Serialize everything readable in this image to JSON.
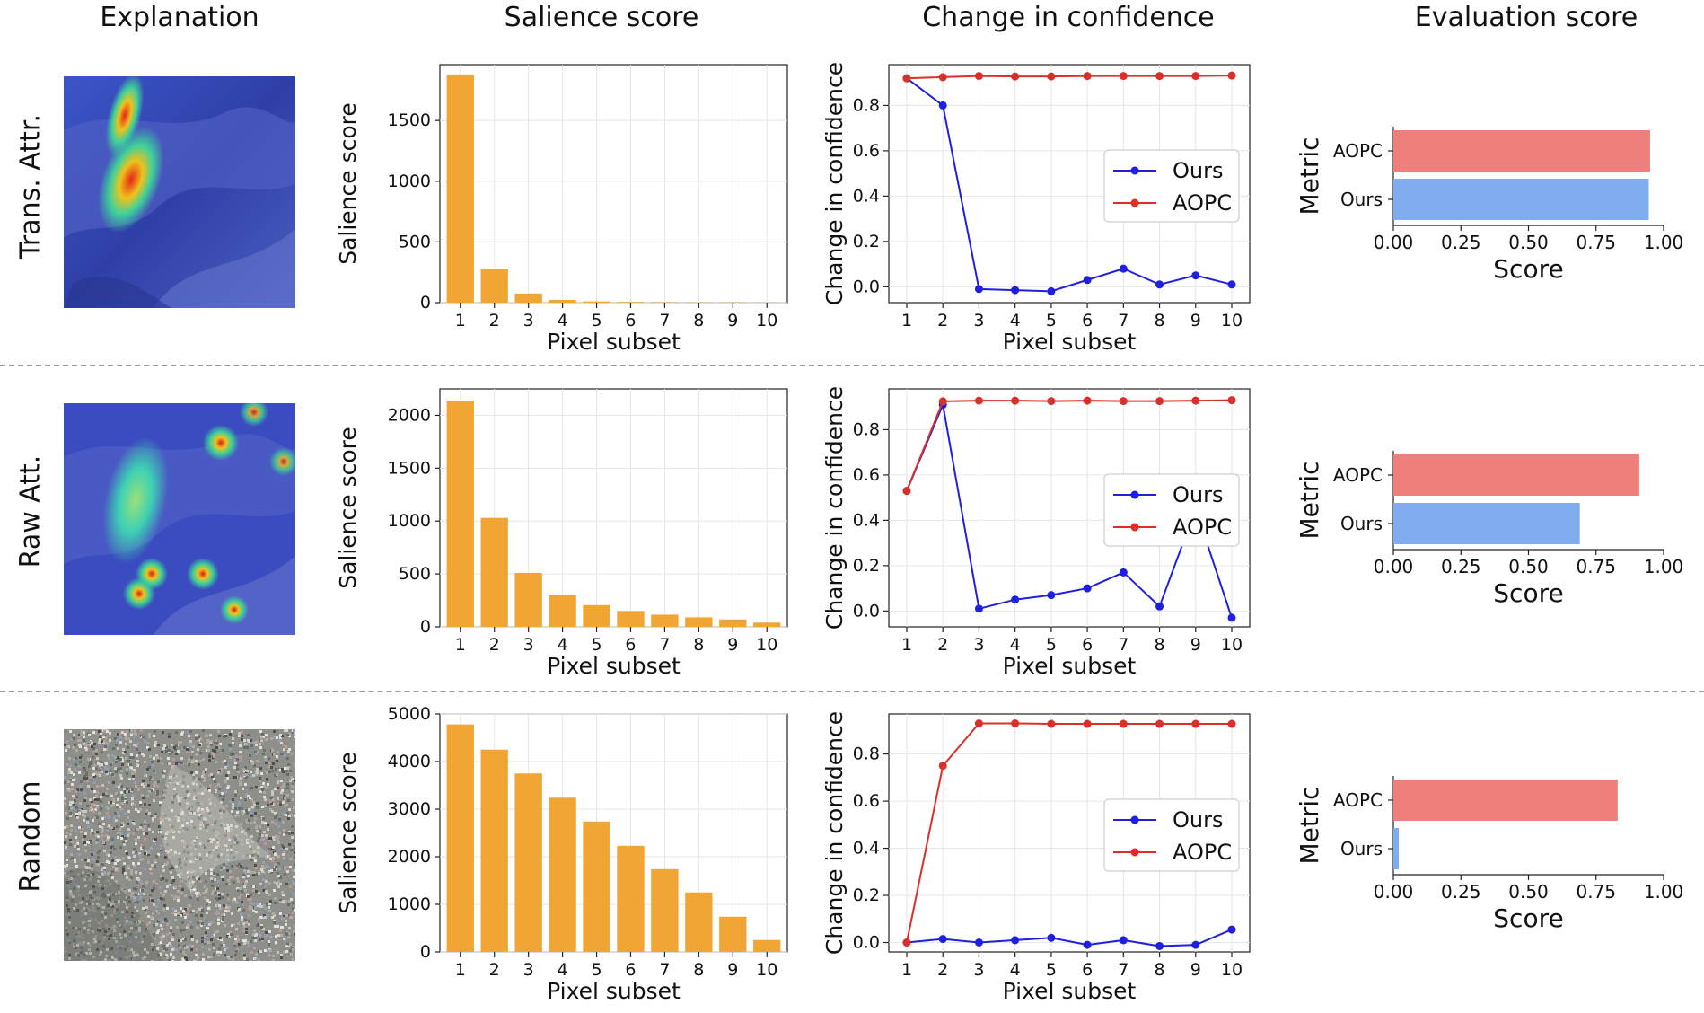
{
  "column_headers": [
    "Explanation",
    "Salience score",
    "Change in confidence",
    "Evaluation score"
  ],
  "rows": [
    {
      "label": "Trans. Attr.",
      "image": "heatmap-single-blob"
    },
    {
      "label": "Raw Att.",
      "image": "heatmap-scattered-spots"
    },
    {
      "label": "Random",
      "image": "noise"
    }
  ],
  "colors": {
    "bar": "#f0a535",
    "ours": "#1f1fe0",
    "aopc": "#d9302a",
    "eval_aopc": "#ee7f7c",
    "eval_ours": "#80adef"
  },
  "chart_data": [
    {
      "type": "bar",
      "row": "Trans. Attr.",
      "categories": [
        "1",
        "2",
        "3",
        "4",
        "5",
        "6",
        "7",
        "8",
        "9",
        "10"
      ],
      "values": [
        1880,
        280,
        75,
        22,
        10,
        5,
        3,
        2,
        2,
        1
      ],
      "xlabel": "Pixel subset",
      "ylabel": "Salience score",
      "ylim": [
        0,
        1960
      ],
      "yticks": [
        0,
        500,
        1000,
        1500
      ],
      "grid": true
    },
    {
      "type": "line",
      "row": "Trans. Attr.",
      "x": [
        1,
        2,
        3,
        4,
        5,
        6,
        7,
        8,
        9,
        10
      ],
      "series": [
        {
          "name": "Ours",
          "values": [
            0.92,
            0.8,
            -0.01,
            -0.015,
            -0.02,
            0.03,
            0.08,
            0.01,
            0.05,
            0.01
          ]
        },
        {
          "name": "AOPC",
          "values": [
            0.92,
            0.925,
            0.93,
            0.928,
            0.928,
            0.93,
            0.93,
            0.93,
            0.93,
            0.932
          ]
        }
      ],
      "xlabel": "Pixel subset",
      "ylabel": "Change in confidence",
      "ylim": [
        -0.07,
        0.98
      ],
      "yticks": [
        0.0,
        0.2,
        0.4,
        0.6,
        0.8
      ],
      "legend": "center-right",
      "grid": true
    },
    {
      "type": "bar",
      "orientation": "horizontal",
      "row": "Trans. Attr.",
      "categories": [
        "AOPC",
        "Ours"
      ],
      "values": [
        0.95,
        0.945
      ],
      "xlabel": "Score",
      "ylabel": "Metric",
      "xlim": [
        0,
        1
      ],
      "xticks": [
        "0.00",
        "0.25",
        "0.50",
        "0.75",
        "1.00"
      ]
    },
    {
      "type": "bar",
      "row": "Raw Att.",
      "categories": [
        "1",
        "2",
        "3",
        "4",
        "5",
        "6",
        "7",
        "8",
        "9",
        "10"
      ],
      "values": [
        2140,
        1030,
        510,
        305,
        205,
        150,
        115,
        90,
        70,
        40
      ],
      "xlabel": "Pixel subset",
      "ylabel": "Salience score",
      "ylim": [
        0,
        2250
      ],
      "yticks": [
        0,
        500,
        1000,
        1500,
        2000
      ],
      "grid": true
    },
    {
      "type": "line",
      "row": "Raw Att.",
      "x": [
        1,
        2,
        3,
        4,
        5,
        6,
        7,
        8,
        9,
        10
      ],
      "series": [
        {
          "name": "Ours",
          "values": [
            0.53,
            0.91,
            0.01,
            0.05,
            0.07,
            0.1,
            0.17,
            0.02,
            0.45,
            -0.03
          ]
        },
        {
          "name": "AOPC",
          "values": [
            0.53,
            0.925,
            0.928,
            0.928,
            0.926,
            0.928,
            0.926,
            0.926,
            0.928,
            0.93
          ]
        }
      ],
      "xlabel": "Pixel subset",
      "ylabel": "Change in confidence",
      "ylim": [
        -0.07,
        0.98
      ],
      "yticks": [
        0.0,
        0.2,
        0.4,
        0.6,
        0.8
      ],
      "legend": "center-right",
      "grid": true
    },
    {
      "type": "bar",
      "orientation": "horizontal",
      "row": "Raw Att.",
      "categories": [
        "AOPC",
        "Ours"
      ],
      "values": [
        0.91,
        0.69
      ],
      "xlabel": "Score",
      "ylabel": "Metric",
      "xlim": [
        0,
        1
      ],
      "xticks": [
        "0.00",
        "0.25",
        "0.50",
        "0.75",
        "1.00"
      ]
    },
    {
      "type": "bar",
      "row": "Random",
      "categories": [
        "1",
        "2",
        "3",
        "4",
        "5",
        "6",
        "7",
        "8",
        "9",
        "10"
      ],
      "values": [
        4780,
        4250,
        3750,
        3240,
        2740,
        2230,
        1740,
        1250,
        740,
        250
      ],
      "xlabel": "Pixel subset",
      "ylabel": "Salience score",
      "ylim": [
        0,
        5000
      ],
      "yticks": [
        0,
        1000,
        2000,
        3000,
        4000,
        5000
      ],
      "grid": true
    },
    {
      "type": "line",
      "row": "Random",
      "x": [
        1,
        2,
        3,
        4,
        5,
        6,
        7,
        8,
        9,
        10
      ],
      "series": [
        {
          "name": "Ours",
          "values": [
            0.0,
            0.015,
            0.0,
            0.01,
            0.02,
            -0.01,
            0.01,
            -0.015,
            -0.01,
            0.055
          ]
        },
        {
          "name": "AOPC",
          "values": [
            0.0,
            0.75,
            0.93,
            0.93,
            0.928,
            0.928,
            0.928,
            0.928,
            0.928,
            0.928
          ]
        }
      ],
      "xlabel": "Pixel subset",
      "ylabel": "Change in confidence",
      "ylim": [
        -0.04,
        0.97
      ],
      "yticks": [
        0.0,
        0.2,
        0.4,
        0.6,
        0.8
      ],
      "legend": "center-right",
      "grid": true
    },
    {
      "type": "bar",
      "orientation": "horizontal",
      "row": "Random",
      "categories": [
        "AOPC",
        "Ours"
      ],
      "values": [
        0.83,
        0.02
      ],
      "xlabel": "Score",
      "ylabel": "Metric",
      "xlim": [
        0,
        1
      ],
      "xticks": [
        "0.00",
        "0.25",
        "0.50",
        "0.75",
        "1.00"
      ]
    }
  ]
}
